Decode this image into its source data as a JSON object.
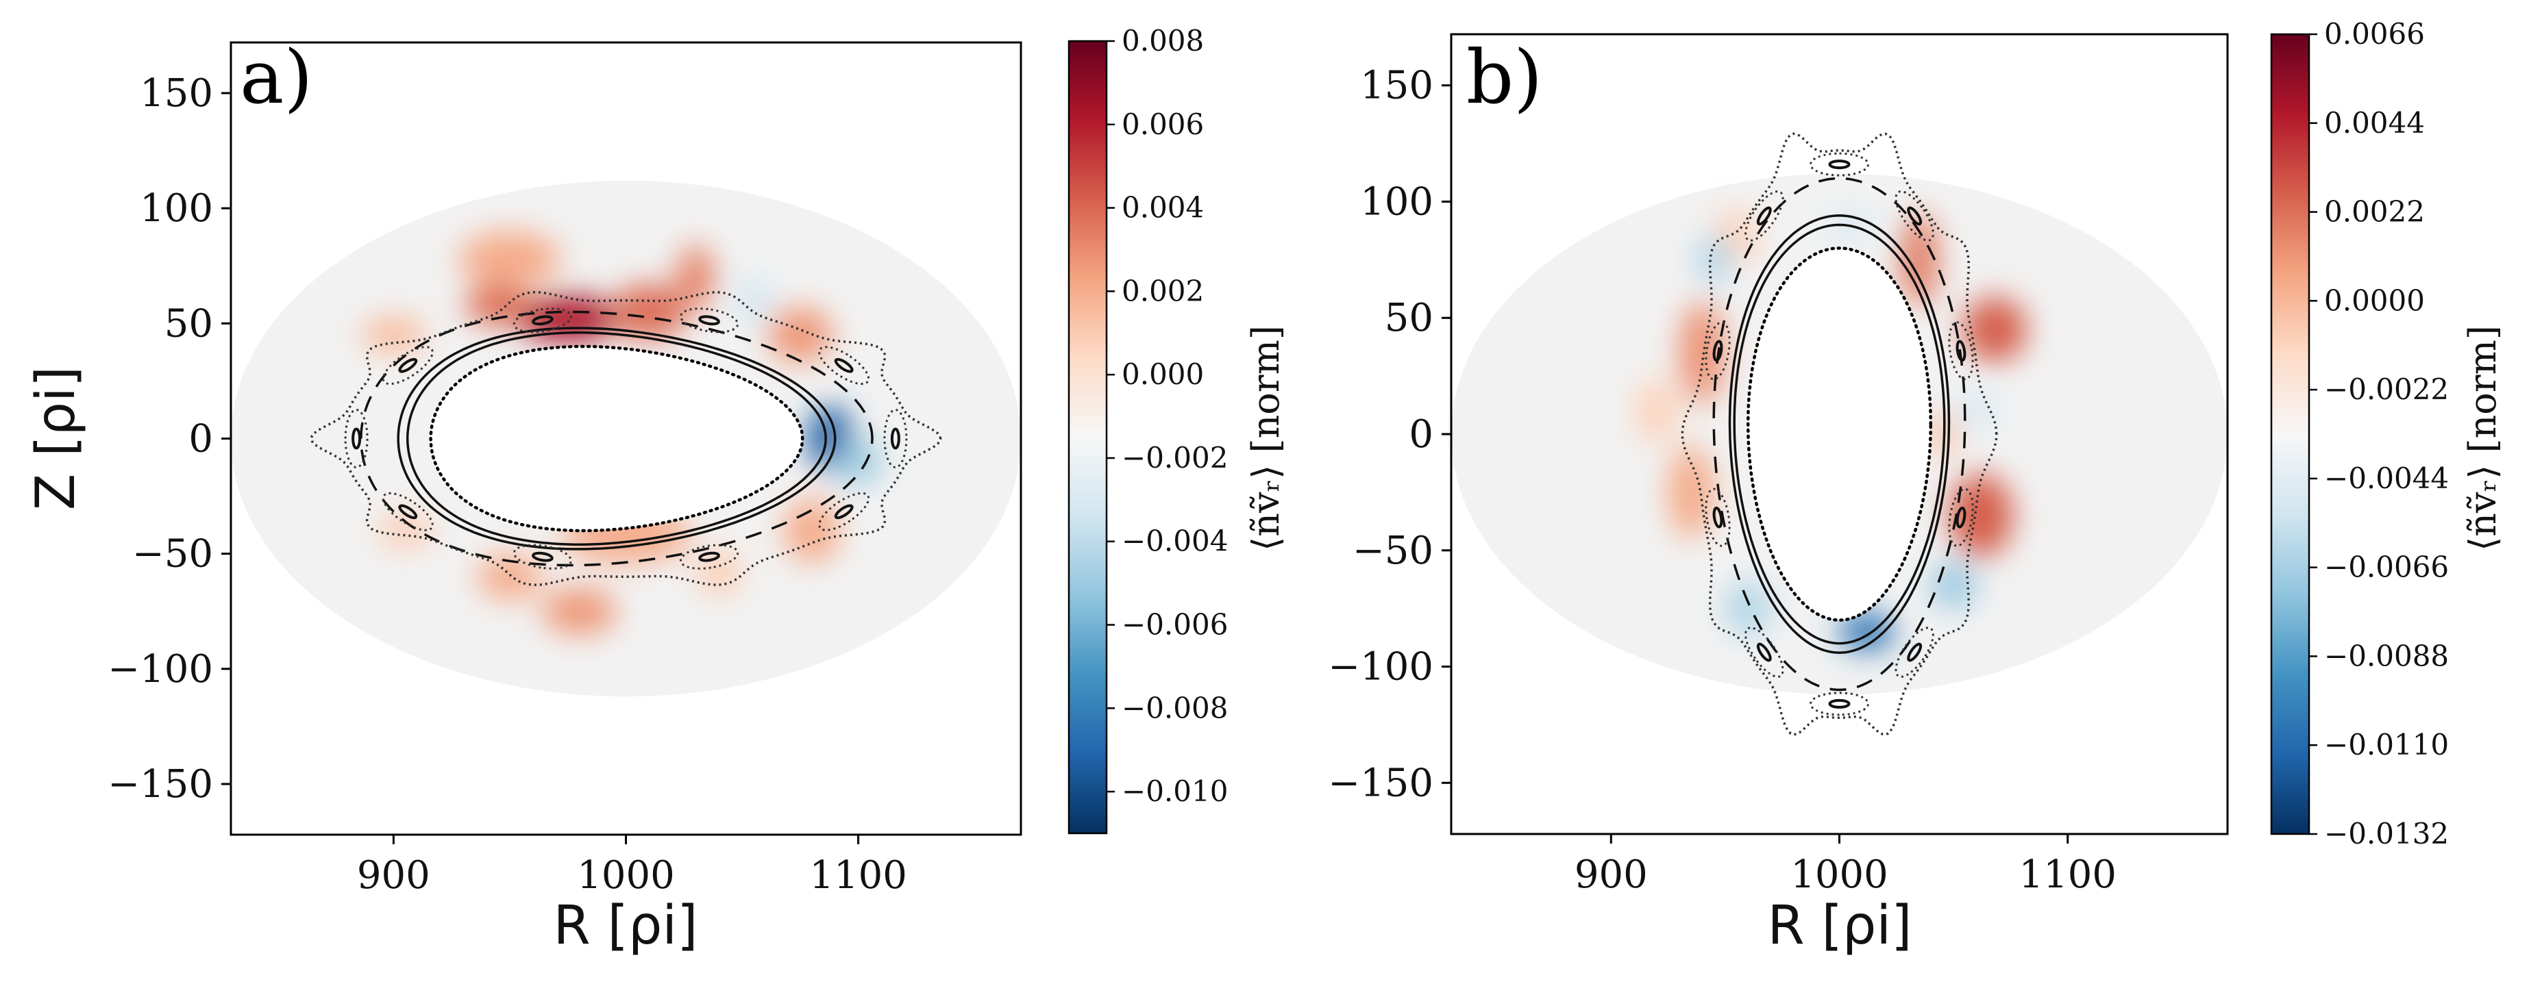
{
  "chart_data": [
    {
      "type": "heatmap",
      "panel_label": "a)",
      "xlabel": "R [ρi]",
      "ylabel": "Z [ρi]",
      "xlim": [
        830,
        1170
      ],
      "ylim": [
        -172,
        172
      ],
      "x_ticks": [
        {
          "value": 900,
          "label": "900"
        },
        {
          "value": 1000,
          "label": "1000"
        },
        {
          "value": 1100,
          "label": "1100"
        }
      ],
      "y_ticks": [
        {
          "value": 150,
          "label": "150"
        },
        {
          "value": 100,
          "label": "100"
        },
        {
          "value": 50,
          "label": "50"
        },
        {
          "value": 0,
          "label": "0"
        },
        {
          "value": -50,
          "label": "−50"
        },
        {
          "value": -100,
          "label": "−100"
        },
        {
          "value": -150,
          "label": "−150"
        }
      ],
      "domain": {
        "center_r": 1000,
        "center_z": 0,
        "semi_r": 170,
        "semi_z": 112
      },
      "inner_boundary": {
        "semi_r": 80,
        "semi_z": 40,
        "shape": "D"
      },
      "colorbar": {
        "label": "⟨ñṽᵣ⟩  [norm]",
        "range": [
          -0.011,
          0.008
        ],
        "ticks": [
          {
            "value": 0.008,
            "label": "0.008"
          },
          {
            "value": 0.006,
            "label": "0.006"
          },
          {
            "value": 0.004,
            "label": "0.004"
          },
          {
            "value": 0.002,
            "label": "0.002"
          },
          {
            "value": 0.0,
            "label": "0.000"
          },
          {
            "value": -0.002,
            "label": "−0.002"
          },
          {
            "value": -0.004,
            "label": "−0.004"
          },
          {
            "value": -0.006,
            "label": "−0.006"
          },
          {
            "value": -0.008,
            "label": "−0.008"
          },
          {
            "value": -0.01,
            "label": "−0.010"
          }
        ]
      },
      "blobs": [
        {
          "r": 975,
          "z": 52,
          "sr": 22,
          "sz": 10,
          "v": 0.0065
        },
        {
          "r": 945,
          "z": 58,
          "sr": 14,
          "sz": 9,
          "v": 0.0045
        },
        {
          "r": 1010,
          "z": 55,
          "sr": 16,
          "sz": 12,
          "v": 0.0045
        },
        {
          "r": 1030,
          "z": 70,
          "sr": 8,
          "sz": 14,
          "v": 0.004
        },
        {
          "r": 950,
          "z": 78,
          "sr": 22,
          "sz": 12,
          "v": 0.003
        },
        {
          "r": 900,
          "z": 45,
          "sr": 14,
          "sz": 8,
          "v": 0.0025
        },
        {
          "r": 1075,
          "z": 45,
          "sr": 14,
          "sz": 12,
          "v": 0.0035
        },
        {
          "r": 1080,
          "z": -40,
          "sr": 12,
          "sz": 14,
          "v": 0.003
        },
        {
          "r": 1000,
          "z": -42,
          "sr": 28,
          "sz": 12,
          "v": 0.003
        },
        {
          "r": 980,
          "z": -75,
          "sr": 16,
          "sz": 10,
          "v": 0.0035
        },
        {
          "r": 950,
          "z": -60,
          "sr": 14,
          "sz": 10,
          "v": 0.003
        },
        {
          "r": 1040,
          "z": -58,
          "sr": 10,
          "sz": 10,
          "v": 0.002
        },
        {
          "r": 905,
          "z": -40,
          "sr": 12,
          "sz": 8,
          "v": 0.002
        },
        {
          "r": 1088,
          "z": 0,
          "sr": 10,
          "sz": 14,
          "v": -0.009
        },
        {
          "r": 1100,
          "z": -10,
          "sr": 10,
          "sz": 10,
          "v": -0.004
        },
        {
          "r": 1055,
          "z": 60,
          "sr": 8,
          "sz": 10,
          "v": -0.002
        }
      ]
    },
    {
      "type": "heatmap",
      "panel_label": "b)",
      "xlabel": "R [ρi]",
      "ylabel": "",
      "xlim": [
        830,
        1170
      ],
      "ylim": [
        -172,
        172
      ],
      "x_ticks": [
        {
          "value": 900,
          "label": "900"
        },
        {
          "value": 1000,
          "label": "1000"
        },
        {
          "value": 1100,
          "label": "1100"
        }
      ],
      "y_ticks": [
        {
          "value": 150,
          "label": "150"
        },
        {
          "value": 100,
          "label": "100"
        },
        {
          "value": 50,
          "label": "50"
        },
        {
          "value": 0,
          "label": "0"
        },
        {
          "value": -50,
          "label": "−50"
        },
        {
          "value": -100,
          "label": "−100"
        },
        {
          "value": -150,
          "label": "−150"
        }
      ],
      "domain": {
        "center_r": 1000,
        "center_z": 0,
        "semi_r": 170,
        "semi_z": 112
      },
      "inner_boundary": {
        "semi_r": 40,
        "semi_z": 80,
        "shape": "D"
      },
      "colorbar": {
        "label": "⟨ñṽᵣ⟩  [norm]",
        "range": [
          -0.0132,
          0.0066
        ],
        "ticks": [
          {
            "value": 0.0066,
            "label": "0.0066"
          },
          {
            "value": 0.0044,
            "label": "0.0044"
          },
          {
            "value": 0.0022,
            "label": "0.0022"
          },
          {
            "value": 0.0,
            "label": "0.0000"
          },
          {
            "value": -0.0022,
            "label": "−0.0022"
          },
          {
            "value": -0.0044,
            "label": "−0.0044"
          },
          {
            "value": -0.0066,
            "label": "−0.0066"
          },
          {
            "value": -0.0088,
            "label": "−0.0088"
          },
          {
            "value": -0.011,
            "label": "−0.0110"
          },
          {
            "value": -0.0132,
            "label": "−0.0132"
          }
        ]
      },
      "blobs": [
        {
          "r": 1068,
          "z": 45,
          "sr": 14,
          "sz": 14,
          "v": 0.004
        },
        {
          "r": 1062,
          "z": -35,
          "sr": 14,
          "sz": 18,
          "v": 0.004
        },
        {
          "r": 1035,
          "z": 75,
          "sr": 8,
          "sz": 20,
          "v": 0.0035
        },
        {
          "r": 940,
          "z": 35,
          "sr": 10,
          "sz": 22,
          "v": 0.003
        },
        {
          "r": 935,
          "z": -25,
          "sr": 10,
          "sz": 20,
          "v": 0.0025
        },
        {
          "r": 920,
          "z": 10,
          "sr": 10,
          "sz": 14,
          "v": 0.0015
        },
        {
          "r": 1045,
          "z": 0,
          "sr": 6,
          "sz": 10,
          "v": 0.002
        },
        {
          "r": 955,
          "z": 85,
          "sr": 10,
          "sz": 12,
          "v": 0.0015
        },
        {
          "r": 1012,
          "z": -85,
          "sr": 12,
          "sz": 8,
          "v": -0.01
        },
        {
          "r": 1050,
          "z": -65,
          "sr": 10,
          "sz": 10,
          "v": -0.005
        },
        {
          "r": 945,
          "z": 75,
          "sr": 8,
          "sz": 10,
          "v": -0.004
        },
        {
          "r": 960,
          "z": -75,
          "sr": 10,
          "sz": 12,
          "v": -0.004
        },
        {
          "r": 1060,
          "z": 10,
          "sr": 10,
          "sz": 8,
          "v": -0.002
        },
        {
          "r": 1005,
          "z": 90,
          "sr": 12,
          "sz": 6,
          "v": -0.002
        }
      ]
    }
  ]
}
